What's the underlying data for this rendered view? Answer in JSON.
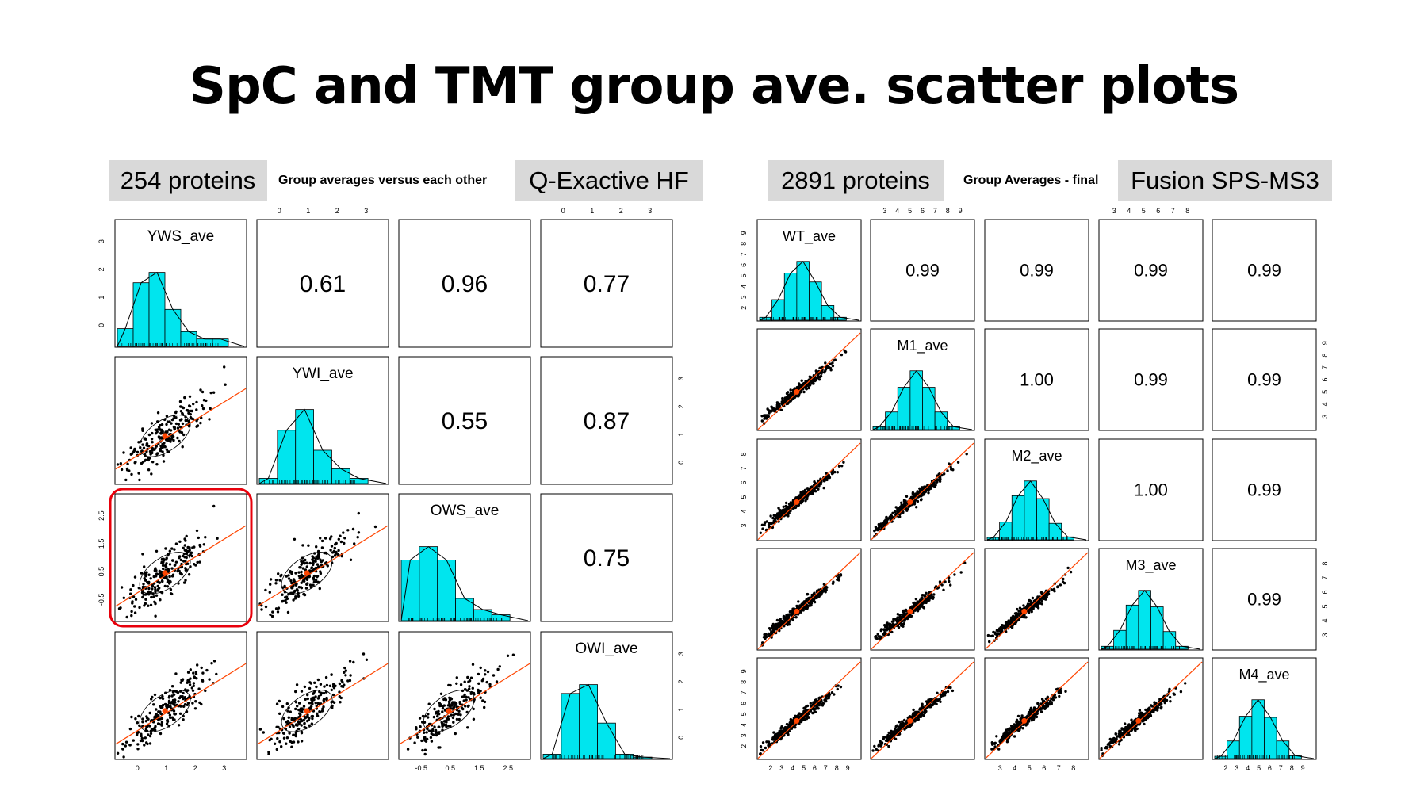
{
  "slide": {
    "title": "SpC and TMT group ave. scatter plots"
  },
  "left_panel": {
    "protein_count": "254 proteins",
    "plot_title": "Group averages versus each other",
    "instrument": "Q-Exactive HF"
  },
  "right_panel": {
    "protein_count": "2891 proteins",
    "plot_title": "Group Averages - final",
    "instrument": "Fusion SPS-MS3"
  },
  "colors": {
    "histogram": "#00e5ee",
    "fit_line": "#ff4500",
    "highlight": "#e8000b",
    "points": "#000000"
  },
  "chart_data": [
    {
      "type": "scatter",
      "title": "Group averages versus each other",
      "variables": [
        "YWS_ave",
        "YWI_ave",
        "OWS_ave",
        "OWI_ave"
      ],
      "correlations": [
        {
          "row": "YWS_ave",
          "col": "YWI_ave",
          "r": "0.61"
        },
        {
          "row": "YWS_ave",
          "col": "OWS_ave",
          "r": "0.96"
        },
        {
          "row": "YWS_ave",
          "col": "OWI_ave",
          "r": "0.77"
        },
        {
          "row": "YWI_ave",
          "col": "OWS_ave",
          "r": "0.55"
        },
        {
          "row": "YWI_ave",
          "col": "OWI_ave",
          "r": "0.87"
        },
        {
          "row": "OWS_ave",
          "col": "OWI_ave",
          "r": "0.75"
        }
      ],
      "axis_ticks": {
        "YWS_ave": [
          "0",
          "1",
          "2",
          "3"
        ],
        "YWI_ave": [
          "0",
          "1",
          "2",
          "3"
        ],
        "OWS_ave": [
          "-0.5",
          "0.5",
          "1.5",
          "2.5"
        ],
        "OWI_ave": [
          "0",
          "1",
          "2",
          "3"
        ]
      },
      "ranges": {
        "YWS_ave": [
          -0.7,
          3.3
        ],
        "YWI_ave": [
          -0.7,
          3.3
        ],
        "OWS_ave": [
          -0.7,
          3.0
        ],
        "OWI_ave": [
          -0.7,
          3.1
        ]
      },
      "histograms": {
        "YWS_ave": [
          0.24,
          0.86,
          1.0,
          0.5,
          0.2,
          0.1,
          0.1
        ],
        "YWI_ave": [
          0.07,
          0.72,
          1.0,
          0.45,
          0.2,
          0.07
        ],
        "OWS_ave": [
          0.82,
          1.0,
          0.82,
          0.3,
          0.15,
          0.08
        ],
        "OWI_ave": [
          0.06,
          0.88,
          1.0,
          0.48,
          0.06,
          0.02
        ]
      },
      "highlighted_cell": {
        "row": "OWS_ave",
        "col": "YWS_ave"
      }
    },
    {
      "type": "scatter",
      "title": "Group Averages - final",
      "variables": [
        "WT_ave",
        "M1_ave",
        "M2_ave",
        "M3_ave",
        "M4_ave"
      ],
      "correlations": [
        {
          "row": "WT_ave",
          "col": "M1_ave",
          "r": "0.99"
        },
        {
          "row": "WT_ave",
          "col": "M2_ave",
          "r": "0.99"
        },
        {
          "row": "WT_ave",
          "col": "M3_ave",
          "r": "0.99"
        },
        {
          "row": "WT_ave",
          "col": "M4_ave",
          "r": "0.99"
        },
        {
          "row": "M1_ave",
          "col": "M2_ave",
          "r": "1.00"
        },
        {
          "row": "M1_ave",
          "col": "M3_ave",
          "r": "0.99"
        },
        {
          "row": "M1_ave",
          "col": "M4_ave",
          "r": "0.99"
        },
        {
          "row": "M2_ave",
          "col": "M3_ave",
          "r": "1.00"
        },
        {
          "row": "M2_ave",
          "col": "M4_ave",
          "r": "0.99"
        },
        {
          "row": "M3_ave",
          "col": "M4_ave",
          "r": "0.99"
        }
      ],
      "axis_ticks": {
        "WT_ave": [
          "2",
          "3",
          "4",
          "5",
          "6",
          "7",
          "8",
          "9"
        ],
        "M1_ave": [
          "3",
          "4",
          "5",
          "6",
          "7",
          "8",
          "9"
        ],
        "M2_ave": [
          "3",
          "4",
          "5",
          "6",
          "7",
          "8"
        ],
        "M3_ave": [
          "3",
          "4",
          "5",
          "6",
          "7",
          "8"
        ],
        "M4_ave": [
          "2",
          "3",
          "4",
          "5",
          "6",
          "7",
          "8",
          "9"
        ]
      },
      "ranges": {
        "WT_ave": [
          2,
          9
        ],
        "M1_ave": [
          2.6,
          9.1
        ],
        "M2_ave": [
          2.6,
          9.1
        ],
        "M3_ave": [
          2.6,
          9.1
        ],
        "M4_ave": [
          2,
          9
        ]
      },
      "histograms": {
        "WT_ave": [
          0.05,
          0.35,
          0.8,
          1.0,
          0.65,
          0.25,
          0.05
        ],
        "M1_ave": [
          0.05,
          0.3,
          0.72,
          1.0,
          0.72,
          0.3,
          0.05
        ],
        "M2_ave": [
          0.04,
          0.3,
          0.75,
          1.0,
          0.7,
          0.28,
          0.05
        ],
        "M3_ave": [
          0.05,
          0.32,
          0.75,
          1.0,
          0.72,
          0.3,
          0.05
        ],
        "M4_ave": [
          0.04,
          0.3,
          0.72,
          1.0,
          0.7,
          0.3,
          0.05
        ]
      }
    }
  ]
}
